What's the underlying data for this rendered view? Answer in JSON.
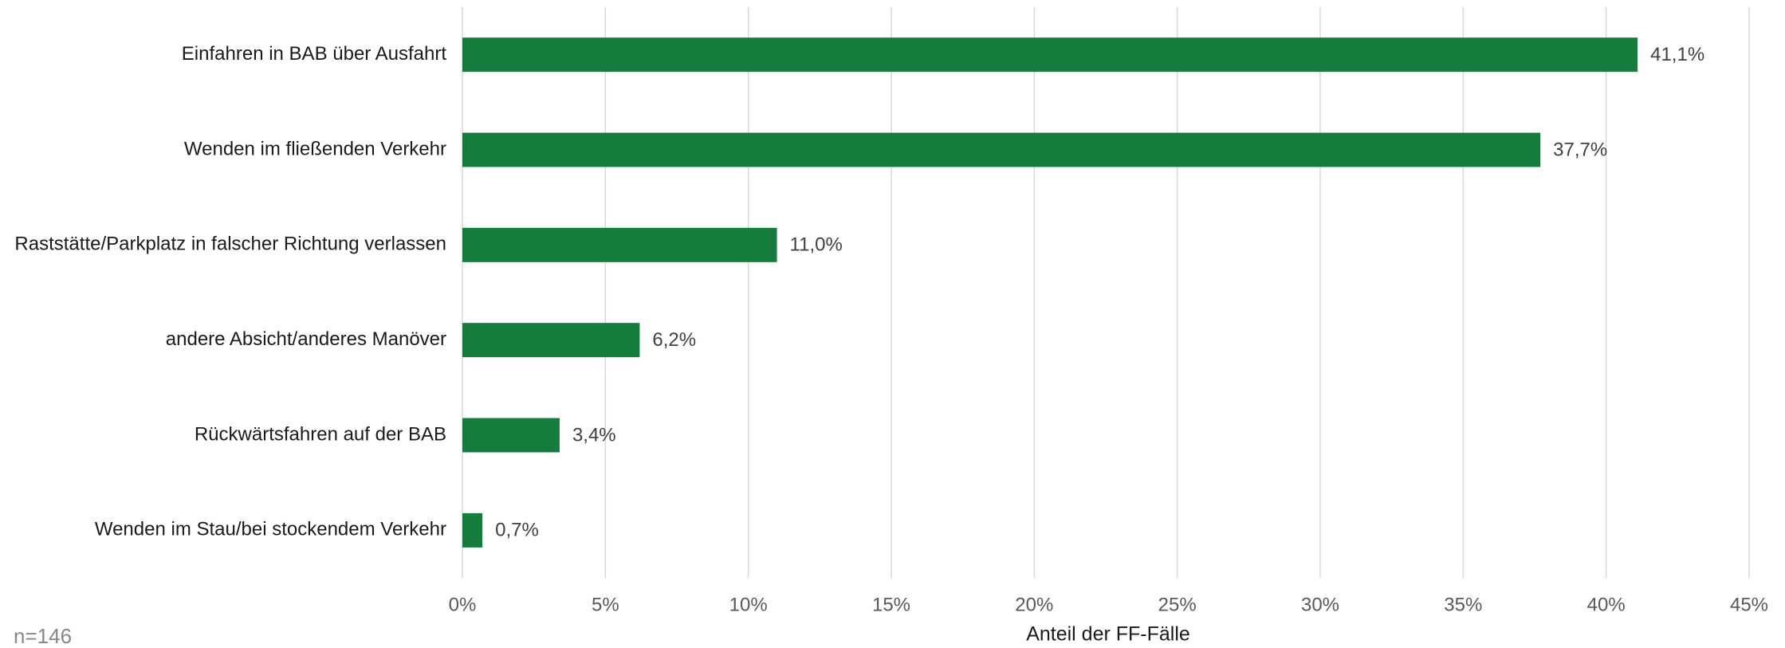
{
  "chart_data": {
    "type": "bar",
    "orientation": "horizontal",
    "categories": [
      "Einfahren in BAB über Ausfahrt",
      "Wenden im fließenden Verkehr",
      "Raststätte/Parkplatz in falscher Richtung verlassen",
      "andere Absicht/anderes Manöver",
      "Rückwärtsfahren auf der BAB",
      "Wenden im Stau/bei stockendem Verkehr"
    ],
    "values": [
      41.1,
      37.7,
      11.0,
      6.2,
      3.4,
      0.7
    ],
    "value_labels": [
      "41,1%",
      "37,7%",
      "11,0%",
      "6,2%",
      "3,4%",
      "0,7%"
    ],
    "color": "#167c3e",
    "xlabel": "Anteil der FF-Fälle",
    "note": "n=146",
    "xlim": [
      0,
      45
    ],
    "xticks": [
      {
        "value": 0,
        "label": "0%"
      },
      {
        "value": 5,
        "label": "5%"
      },
      {
        "value": 10,
        "label": "10%"
      },
      {
        "value": 15,
        "label": "15%"
      },
      {
        "value": 20,
        "label": "20%"
      },
      {
        "value": 25,
        "label": "25%"
      },
      {
        "value": 30,
        "label": "30%"
      },
      {
        "value": 35,
        "label": "35%"
      },
      {
        "value": 40,
        "label": "40%"
      },
      {
        "value": 45,
        "label": "45%"
      }
    ],
    "grid": true
  }
}
